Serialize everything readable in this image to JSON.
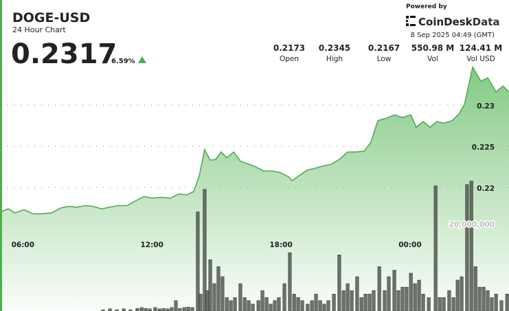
{
  "header": {
    "symbol": "DOGE-USD",
    "subtitle": "24 Hour Chart",
    "price": "0.2317",
    "change": "6.59%",
    "powered_by": "Powered by",
    "brand": [
      "CoinDesk",
      "Data"
    ],
    "timestamp": "8 Sep 2025 04:49 (GMT)",
    "stats": [
      {
        "value": "0.2173",
        "label": "Open"
      },
      {
        "value": "0.2345",
        "label": "High"
      },
      {
        "value": "0.2167",
        "label": "Low"
      },
      {
        "value": "550.98 M",
        "label": "Vol"
      },
      {
        "value": "124.41 M",
        "label": "Vol USD"
      }
    ]
  },
  "chart_data": {
    "type": "line",
    "grid": true,
    "xlim": [
      5,
      28.6
    ],
    "xticks": [
      {
        "value": 6,
        "label": "06:00"
      },
      {
        "value": 12,
        "label": "12:00"
      },
      {
        "value": 18,
        "label": "18:00"
      },
      {
        "value": 24,
        "label": "00:00"
      }
    ],
    "ylim": [
      0.205,
      0.243
    ],
    "yticks": [
      0.22,
      0.225,
      0.23
    ],
    "y2lim": [
      0,
      72000000
    ],
    "y2ticks": [
      {
        "value": 20000000,
        "label": "20,000,000"
      }
    ],
    "price": {
      "color": "#4caf50",
      "x": [
        5.03,
        5.32,
        5.64,
        6.05,
        6.47,
        6.85,
        7.33,
        7.75,
        8.13,
        8.51,
        8.93,
        9.25,
        9.66,
        10.05,
        10.43,
        10.84,
        11.26,
        11.64,
        12.03,
        12.44,
        12.86,
        13.24,
        13.62,
        13.94,
        14.2,
        14.45,
        14.71,
        14.96,
        15.22,
        15.48,
        15.8,
        16.11,
        16.43,
        16.82,
        17.2,
        17.58,
        17.97,
        18.35,
        18.51,
        18.83,
        19.21,
        19.56,
        19.95,
        20.33,
        20.71,
        21.1,
        21.48,
        21.86,
        22.18,
        22.5,
        22.89,
        23.27,
        23.65,
        24.04,
        24.29,
        24.61,
        24.93,
        25.25,
        25.57,
        25.95,
        26.27,
        26.53,
        26.91,
        27.29,
        27.61,
        28.0,
        28.32,
        28.6
      ],
      "values": [
        0.2171,
        0.2174,
        0.2169,
        0.2173,
        0.2168,
        0.2168,
        0.2169,
        0.2175,
        0.2177,
        0.2176,
        0.2178,
        0.2177,
        0.2174,
        0.2176,
        0.2178,
        0.2178,
        0.2184,
        0.2189,
        0.2187,
        0.2188,
        0.2187,
        0.2192,
        0.2191,
        0.2195,
        0.2214,
        0.2246,
        0.2233,
        0.2234,
        0.2243,
        0.2236,
        0.2243,
        0.2232,
        0.2229,
        0.2225,
        0.222,
        0.222,
        0.2218,
        0.2213,
        0.2208,
        0.2214,
        0.2221,
        0.2223,
        0.2226,
        0.2228,
        0.2234,
        0.2243,
        0.2243,
        0.2244,
        0.2255,
        0.2281,
        0.2284,
        0.2288,
        0.2285,
        0.2288,
        0.2273,
        0.228,
        0.2273,
        0.228,
        0.2278,
        0.2281,
        0.2289,
        0.2301,
        0.2346,
        0.2329,
        0.2333,
        0.2316,
        0.2323,
        0.2316
      ]
    },
    "volume": {
      "color": "#4a4f48",
      "axis": "y2",
      "x": [
        9.73,
        10.05,
        10.37,
        10.69,
        11.0,
        11.32,
        11.52,
        11.71,
        11.9,
        12.15,
        12.35,
        12.54,
        12.73,
        12.92,
        13.11,
        13.3,
        13.5,
        13.69,
        13.88,
        14.13,
        14.26,
        14.45,
        14.58,
        14.71,
        14.9,
        15.09,
        15.28,
        15.48,
        15.67,
        15.86,
        16.11,
        16.31,
        16.5,
        16.69,
        16.95,
        17.14,
        17.33,
        17.52,
        17.71,
        17.9,
        18.16,
        18.41,
        18.61,
        18.8,
        18.99,
        19.24,
        19.44,
        19.63,
        19.82,
        20.01,
        20.2,
        20.46,
        20.71,
        20.91,
        21.1,
        21.29,
        21.54,
        21.74,
        21.93,
        22.12,
        22.31,
        22.57,
        22.82,
        23.01,
        23.27,
        23.46,
        23.65,
        23.84,
        24.04,
        24.23,
        24.42,
        24.61,
        24.87,
        25.19,
        25.38,
        25.57,
        25.82,
        26.02,
        26.21,
        26.4,
        26.65,
        26.85,
        27.04,
        27.23,
        27.42,
        27.61,
        27.8,
        28.0,
        28.25,
        28.51
      ],
      "values": [
        300000,
        500000,
        300000,
        500000,
        300000,
        600000,
        800000,
        600000,
        500000,
        800000,
        500000,
        600000,
        500000,
        800000,
        2400000,
        600000,
        800000,
        900000,
        800000,
        22800000,
        3900000,
        28000000,
        4700000,
        11800000,
        6300000,
        10200000,
        7900000,
        3100000,
        2400000,
        3100000,
        6300000,
        3100000,
        2400000,
        1600000,
        2400000,
        4700000,
        3100000,
        1600000,
        2400000,
        3100000,
        6300000,
        13400000,
        3900000,
        3100000,
        2400000,
        1600000,
        2400000,
        3900000,
        2400000,
        1600000,
        2400000,
        3900000,
        12900000,
        4700000,
        6300000,
        4700000,
        7900000,
        3100000,
        3900000,
        3900000,
        4700000,
        10200000,
        4700000,
        7900000,
        9400000,
        4700000,
        5500000,
        5500000,
        8700000,
        6300000,
        7100000,
        3900000,
        3100000,
        28800000,
        3100000,
        3100000,
        4700000,
        3100000,
        7100000,
        7900000,
        29100000,
        29900000,
        10200000,
        5500000,
        5500000,
        4700000,
        3100000,
        3900000,
        2400000,
        3900000
      ]
    }
  }
}
